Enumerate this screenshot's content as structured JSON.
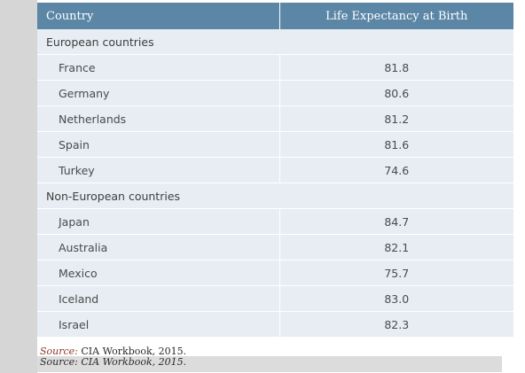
{
  "table": {
    "headers": [
      "Country",
      "Life Expectancy at Birth"
    ],
    "groups": [
      {
        "label": "European countries",
        "rows": [
          {
            "country": "France",
            "value": "81.8"
          },
          {
            "country": "Germany",
            "value": "80.6"
          },
          {
            "country": "Netherlands",
            "value": "81.2"
          },
          {
            "country": "Spain",
            "value": "81.6"
          },
          {
            "country": "Turkey",
            "value": "74.6"
          }
        ]
      },
      {
        "label": "Non-European countries",
        "rows": [
          {
            "country": "Japan",
            "value": "84.7"
          },
          {
            "country": "Australia",
            "value": "82.1"
          },
          {
            "country": "Mexico",
            "value": "75.7"
          },
          {
            "country": "Iceland",
            "value": "83.0"
          },
          {
            "country": "Israel",
            "value": "82.3"
          }
        ]
      }
    ]
  },
  "source": {
    "label": "Source:",
    "text": "CIA Workbook, 2015.",
    "label_2": "Source:",
    "text_2": "CIA Workbook, 2015."
  },
  "colors": {
    "header_bg": "#5b86a6",
    "row_bg": "#e7edf3",
    "sidebar_bg": "#d6d6d6"
  }
}
